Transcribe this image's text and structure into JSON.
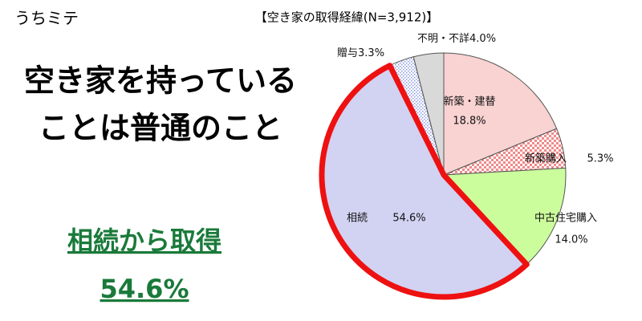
{
  "brand": "うちミテ",
  "headline": [
    "空き家を持っている",
    "ことは普通のこと"
  ],
  "highlight": {
    "label": "相続から取得",
    "value": "54.6%",
    "color": "#1a7a3a"
  },
  "chart_data": {
    "type": "pie",
    "title": "【空き家の取得経緯(N=3,912)】",
    "categories": [
      "新築・建替",
      "新築購入",
      "中古住宅購入",
      "相続",
      "贈与",
      "不明・不詳"
    ],
    "values": [
      18.8,
      5.3,
      14.0,
      54.6,
      3.3,
      4.0
    ],
    "value_labels": [
      "18.8%",
      "5.3%",
      "14.0%",
      "54.6%",
      "3.3%",
      "4.0%"
    ],
    "colors": [
      "#f9d2d2",
      "#f08a8a",
      "#ccfd9c",
      "#d2d2f2",
      "#8a9ae0",
      "#d9d9d9"
    ],
    "patterns": [
      "solid",
      "check",
      "solid",
      "solid",
      "dots",
      "solid"
    ],
    "highlight": {
      "index": 3,
      "color": "#ee1111"
    }
  }
}
